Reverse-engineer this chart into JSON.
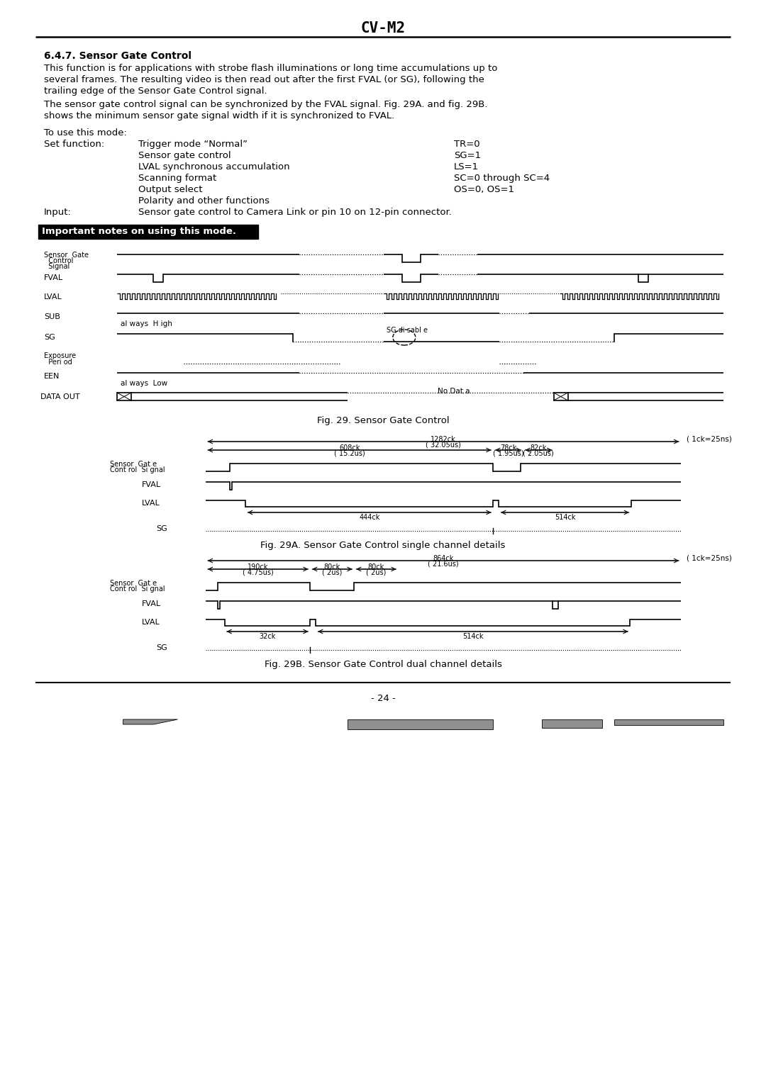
{
  "title": "CV-M2",
  "page_number": "- 24 -",
  "section_title": "6.4.7. Sensor Gate Control",
  "body_text_1": "This function is for applications with strobe flash illuminations or long time accumulations up to",
  "body_text_2": "several frames. The resulting video is then read out after the first FVAL (or SG), following the",
  "body_text_3": "trailing edge of the Sensor Gate Control signal.",
  "body_text_4": "The sensor gate control signal can be synchronized by the FVAL signal. Fig. 29A. and fig. 29B.",
  "body_text_5": "shows the minimum sensor gate signal width if it is synchronized to FVAL.",
  "mode_text": "To use this mode:",
  "set_function_label": "Set function:",
  "set_functions": [
    [
      "Trigger mode “Normal”",
      "TR=0"
    ],
    [
      "Sensor gate control",
      "SG=1"
    ],
    [
      "LVAL synchronous accumulation",
      "LS=1"
    ],
    [
      "Scanning format",
      "SC=0 through SC=4"
    ],
    [
      "Output select",
      "OS=0, OS=1"
    ],
    [
      "Polarity and other functions",
      ""
    ]
  ],
  "input_label": "Input:",
  "input_text": "Sensor gate control to Camera Link or pin 10 on 12-pin connector.",
  "important_note": "Important notes on using this mode.",
  "fig29_caption": "Fig. 29. Sensor Gate Control",
  "fig29a_caption": "Fig. 29A. Sensor Gate Control single channel details",
  "fig29b_caption": "Fig. 29B. Sensor Gate Control dual channel details",
  "bg_color": "#ffffff",
  "text_color": "#000000",
  "gray_fill": "#909090",
  "important_bg": "#000000",
  "important_fg": "#ffffff"
}
